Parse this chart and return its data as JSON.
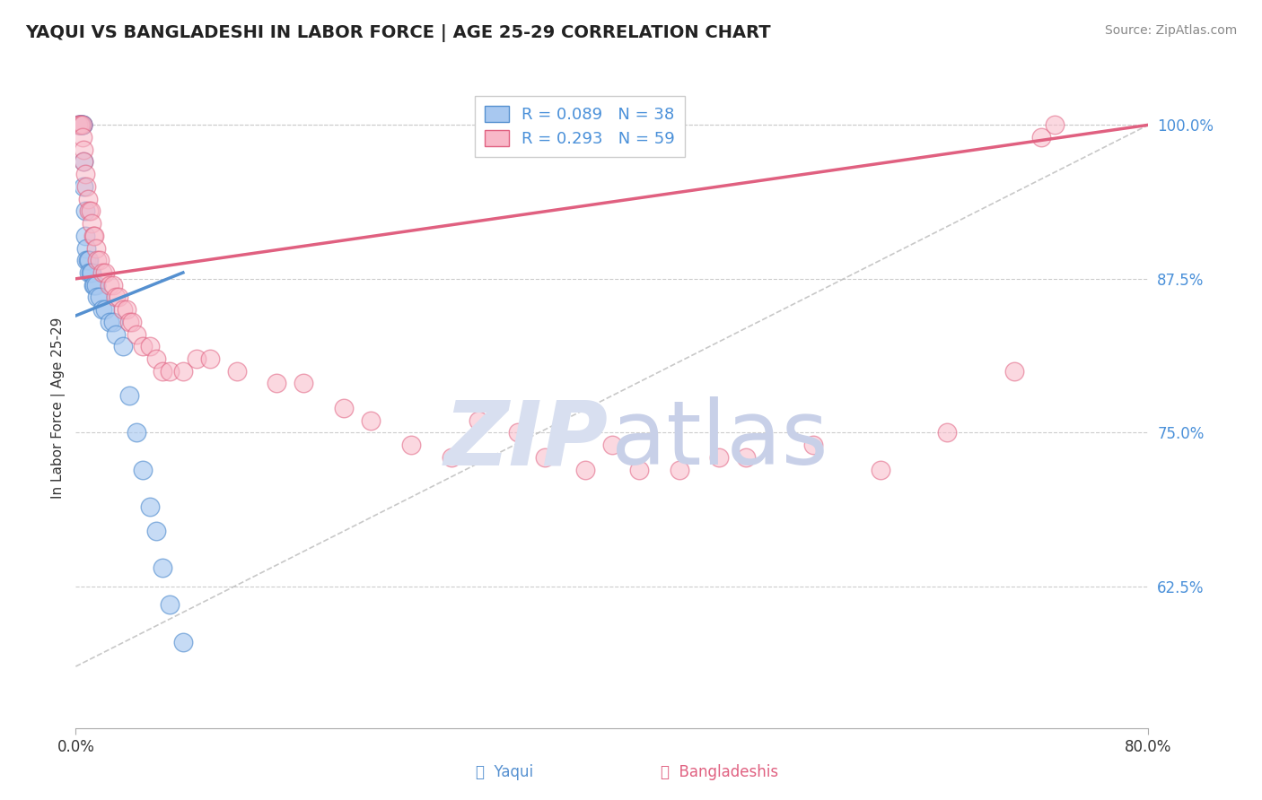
{
  "title": "YAQUI VS BANGLADESHI IN LABOR FORCE | AGE 25-29 CORRELATION CHART",
  "source": "Source: ZipAtlas.com",
  "ylabel": "In Labor Force | Age 25-29",
  "legend_labels": [
    "Yaqui",
    "Bangladeshis"
  ],
  "r_yaqui": 0.089,
  "n_yaqui": 38,
  "r_bangladeshi": 0.293,
  "n_bangladeshi": 59,
  "xlim": [
    0.0,
    0.8
  ],
  "ylim": [
    0.51,
    1.03
  ],
  "yticks": [
    0.625,
    0.75,
    0.875,
    1.0
  ],
  "ytick_labels": [
    "62.5%",
    "75.0%",
    "87.5%",
    "100.0%"
  ],
  "color_yaqui": "#a8c8f0",
  "color_bangladeshi": "#f8b8c8",
  "line_color_yaqui": "#5590d0",
  "line_color_bangladeshi": "#e06080",
  "background_color": "#ffffff",
  "grid_color": "#cccccc",
  "watermark_zip_color": "#d8dff0",
  "watermark_atlas_color": "#c8d0e8",
  "yaqui_x": [
    0.002,
    0.003,
    0.003,
    0.004,
    0.004,
    0.005,
    0.005,
    0.005,
    0.006,
    0.006,
    0.007,
    0.007,
    0.008,
    0.008,
    0.009,
    0.01,
    0.01,
    0.011,
    0.012,
    0.013,
    0.014,
    0.015,
    0.016,
    0.018,
    0.02,
    0.022,
    0.025,
    0.028,
    0.03,
    0.035,
    0.04,
    0.045,
    0.05,
    0.055,
    0.06,
    0.065,
    0.07,
    0.08
  ],
  "yaqui_y": [
    1.0,
    1.0,
    1.0,
    1.0,
    1.0,
    1.0,
    1.0,
    1.0,
    0.97,
    0.95,
    0.93,
    0.91,
    0.9,
    0.89,
    0.89,
    0.89,
    0.88,
    0.88,
    0.88,
    0.87,
    0.87,
    0.87,
    0.86,
    0.86,
    0.85,
    0.85,
    0.84,
    0.84,
    0.83,
    0.82,
    0.78,
    0.75,
    0.72,
    0.69,
    0.67,
    0.64,
    0.61,
    0.58
  ],
  "bangladeshi_x": [
    0.002,
    0.003,
    0.004,
    0.005,
    0.005,
    0.006,
    0.006,
    0.007,
    0.008,
    0.009,
    0.01,
    0.011,
    0.012,
    0.013,
    0.014,
    0.015,
    0.016,
    0.018,
    0.02,
    0.022,
    0.025,
    0.028,
    0.03,
    0.032,
    0.035,
    0.038,
    0.04,
    0.042,
    0.045,
    0.05,
    0.055,
    0.06,
    0.065,
    0.07,
    0.08,
    0.09,
    0.1,
    0.12,
    0.15,
    0.17,
    0.2,
    0.22,
    0.25,
    0.28,
    0.3,
    0.33,
    0.35,
    0.38,
    0.4,
    0.42,
    0.45,
    0.48,
    0.5,
    0.55,
    0.6,
    0.65,
    0.7,
    0.72,
    0.73
  ],
  "bangladeshi_y": [
    1.0,
    1.0,
    1.0,
    1.0,
    0.99,
    0.98,
    0.97,
    0.96,
    0.95,
    0.94,
    0.93,
    0.93,
    0.92,
    0.91,
    0.91,
    0.9,
    0.89,
    0.89,
    0.88,
    0.88,
    0.87,
    0.87,
    0.86,
    0.86,
    0.85,
    0.85,
    0.84,
    0.84,
    0.83,
    0.82,
    0.82,
    0.81,
    0.8,
    0.8,
    0.8,
    0.81,
    0.81,
    0.8,
    0.79,
    0.79,
    0.77,
    0.76,
    0.74,
    0.73,
    0.76,
    0.75,
    0.73,
    0.72,
    0.74,
    0.72,
    0.72,
    0.73,
    0.73,
    0.74,
    0.72,
    0.75,
    0.8,
    0.99,
    1.0
  ],
  "yaqui_line_x": [
    0.0,
    0.08
  ],
  "yaqui_line_y": [
    0.845,
    0.88
  ],
  "bangladeshi_line_x": [
    0.0,
    0.8
  ],
  "bangladeshi_line_y": [
    0.875,
    1.0
  ],
  "ref_line_x": [
    0.0,
    0.8
  ],
  "ref_line_y": [
    0.56,
    1.0
  ]
}
